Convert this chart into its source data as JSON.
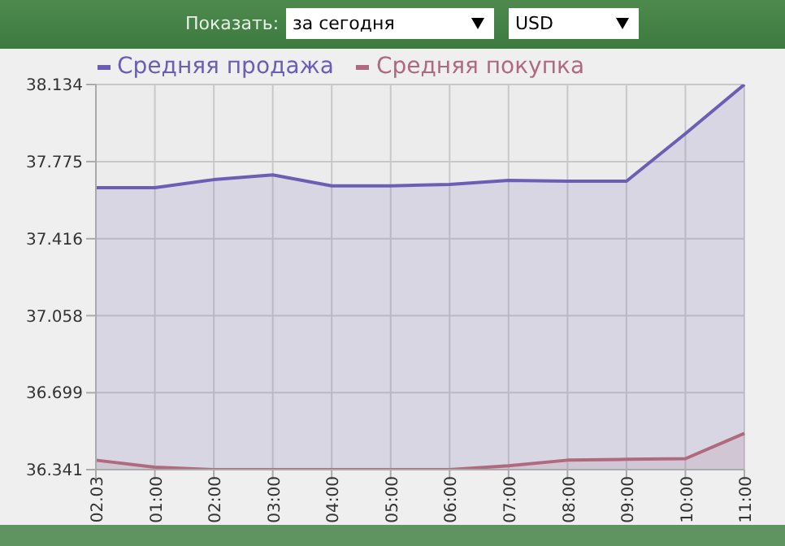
{
  "chart_data": {
    "type": "area",
    "annotations": [
      "Показать:",
      "за сегодня",
      "USD"
    ],
    "categories": [
      "02.03",
      "01:00",
      "02:00",
      "03:00",
      "04:00",
      "05:00",
      "06:00",
      "07:00",
      "08:00",
      "09:00",
      "10:00",
      "11:00"
    ],
    "series": [
      {
        "name": "Средняя продажа",
        "color": "#6a5fb5",
        "values": [
          37.654,
          37.654,
          37.691,
          37.713,
          37.662,
          37.662,
          37.669,
          37.688,
          37.684,
          37.684,
          37.905,
          38.134
        ]
      },
      {
        "name": "Средняя покупка",
        "color": "#b06a80",
        "values": [
          36.385,
          36.352,
          36.341,
          36.341,
          36.341,
          36.341,
          36.341,
          36.359,
          36.385,
          36.389,
          36.392,
          36.51
        ]
      }
    ],
    "ylim": [
      36.341,
      38.134
    ],
    "yticks": [
      36.341,
      36.699,
      37.058,
      37.416,
      37.775,
      38.134
    ],
    "grid": true,
    "legend": "top left",
    "marker": "none",
    "line_style": "solid"
  }
}
